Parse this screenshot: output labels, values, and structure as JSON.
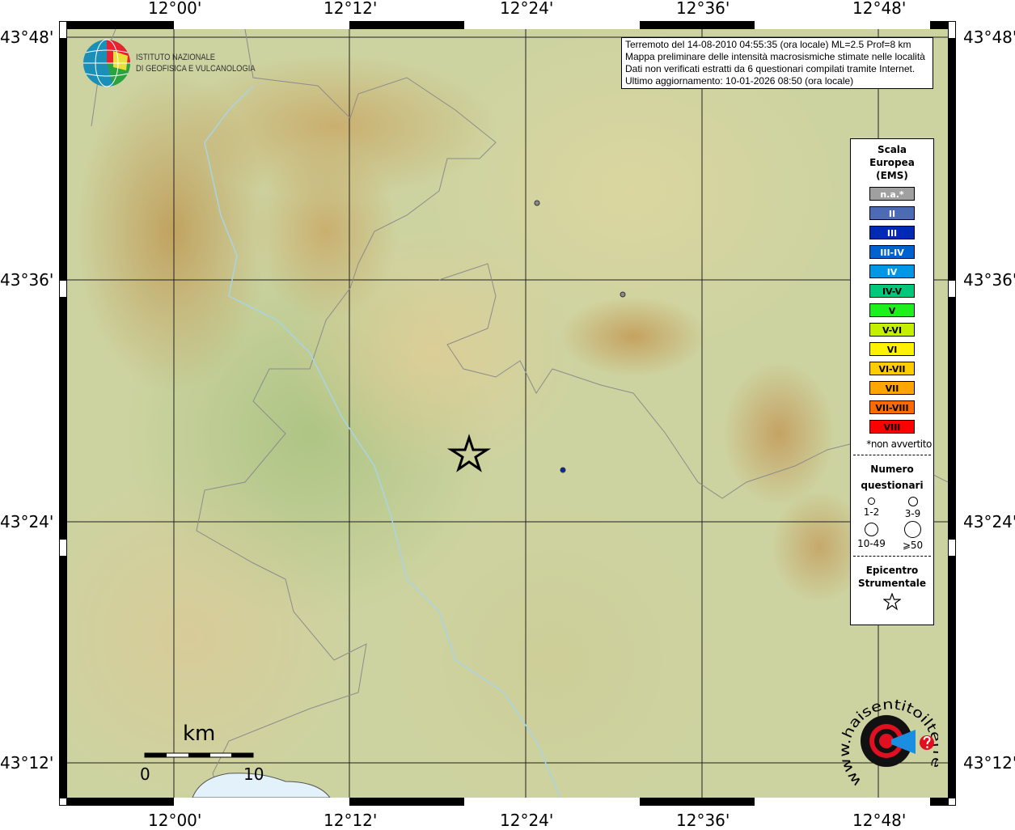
{
  "axes": {
    "lon_labels": [
      "12°00'",
      "12°12'",
      "12°24'",
      "12°36'",
      "12°48'"
    ],
    "lat_labels": [
      "43°48'",
      "43°36'",
      "43°24'",
      "43°12'"
    ]
  },
  "logo_ingv": {
    "line1": "ISTITUTO NAZIONALE",
    "line2": "DI GEOFISICA E VULCANOLOGIA"
  },
  "logo_hsit": {
    "text": "www.haisentitoilterremoto.it"
  },
  "info": {
    "lines": [
      "Terremoto del 14-08-2010 04:55:35 (ora locale) ML=2.5 Prof=8 km",
      "Mappa preliminare delle intensità macrosismiche stimate nelle località",
      "Dati non verificati estratti da 6 questionari compilati tramite Internet.",
      "Ultimo aggiornamento: 10-01-2026 08:50 (ora locale)"
    ]
  },
  "legend": {
    "title": [
      "Scala",
      "Europea",
      "(EMS)"
    ],
    "scale": [
      {
        "label": "n.a.*",
        "color": "#a0a0a0"
      },
      {
        "label": "II",
        "color": "#4d6ab5"
      },
      {
        "label": "III",
        "color": "#0029b5"
      },
      {
        "label": "III-IV",
        "color": "#0062d0"
      },
      {
        "label": "IV",
        "color": "#0098e6"
      },
      {
        "label": "IV-V",
        "color": "#00c87a",
        "dark": true
      },
      {
        "label": "V",
        "color": "#1ef01e",
        "dark": true
      },
      {
        "label": "V-VI",
        "color": "#c4f000",
        "dark": true
      },
      {
        "label": "VI",
        "color": "#fff200",
        "dark": true
      },
      {
        "label": "VI-VII",
        "color": "#ffcc00",
        "dark": true
      },
      {
        "label": "VII",
        "color": "#ffa500",
        "dark": true
      },
      {
        "label": "VII-VIII",
        "color": "#ff6a00",
        "dark": true
      },
      {
        "label": "VIII",
        "color": "#ff0000",
        "dark": true
      }
    ],
    "note": "*non avvertito",
    "count_title": [
      "Numero",
      "questionari"
    ],
    "counts": [
      "1-2",
      "3-9",
      "10-49",
      "⩾50"
    ],
    "epi_title": [
      "Epicentro",
      "Strumentale"
    ]
  },
  "scalebar": {
    "unit": "km",
    "labels": [
      "0",
      "10"
    ]
  },
  "points": [
    {
      "color": "#8a8a8a"
    },
    {
      "color": "#8a8a8a"
    },
    {
      "color": "#0029b5"
    }
  ]
}
